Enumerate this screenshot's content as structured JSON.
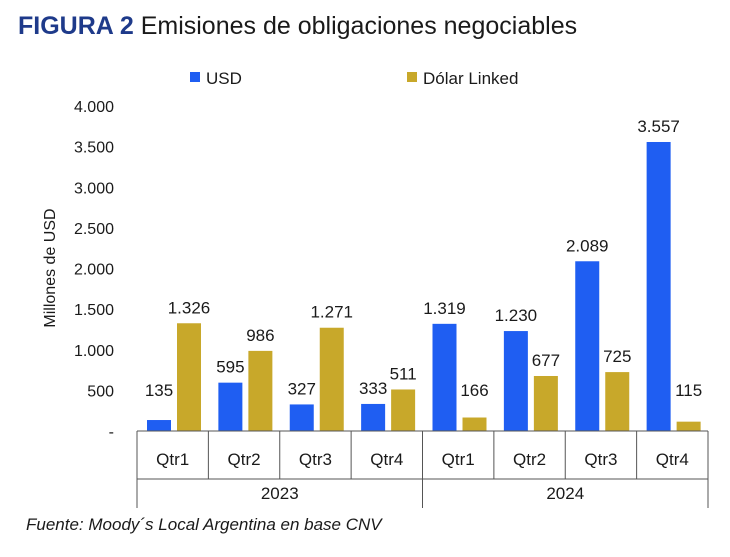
{
  "title": {
    "label": "FIGURA 2",
    "text": "Emisiones de obligaciones negociables"
  },
  "source": "Fuente: Moody´s Local Argentina en base CNV",
  "colors": {
    "usd": "#1f5ef2",
    "linked": "#c8a82a",
    "title_label": "#1e3a8a"
  },
  "chart_data": {
    "type": "bar",
    "ylabel": "Millones de USD",
    "ylim": [
      0,
      4000
    ],
    "yticks": [
      "-",
      "500",
      "1.000",
      "1.500",
      "2.000",
      "2.500",
      "3.000",
      "3.500",
      "4.000"
    ],
    "ytick_values": [
      0,
      500,
      1000,
      1500,
      2000,
      2500,
      3000,
      3500,
      4000
    ],
    "categories": [
      "Qtr1",
      "Qtr2",
      "Qtr3",
      "Qtr4",
      "Qtr1",
      "Qtr2",
      "Qtr3",
      "Qtr4"
    ],
    "groups": [
      {
        "label": "2023",
        "span": [
          0,
          3
        ]
      },
      {
        "label": "2024",
        "span": [
          4,
          7
        ]
      }
    ],
    "legend": {
      "placement": "top"
    },
    "series": [
      {
        "name": "USD",
        "color": "#1f5ef2",
        "values": [
          135,
          595,
          327,
          333,
          1319,
          1230,
          2089,
          3557
        ],
        "labels": [
          "135",
          "595",
          "327",
          "333",
          "1.319",
          "1.230",
          "2.089",
          "3.557"
        ]
      },
      {
        "name": "Dólar Linked",
        "color": "#c8a82a",
        "values": [
          1326,
          986,
          1271,
          511,
          166,
          677,
          725,
          115
        ],
        "labels": [
          "1.326",
          "986",
          "1.271",
          "511",
          "166",
          "677",
          "725",
          "115"
        ]
      }
    ]
  }
}
